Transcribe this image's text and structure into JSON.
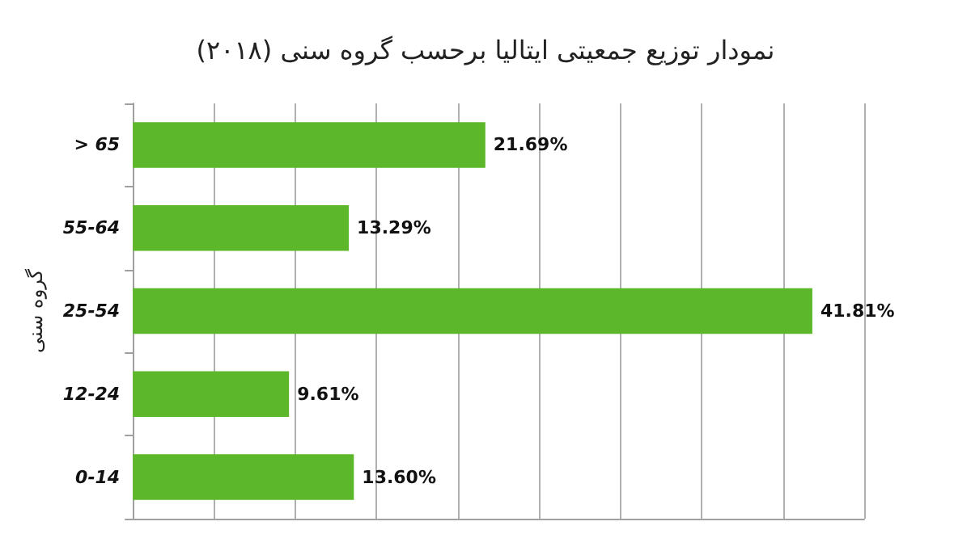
{
  "chart_data": {
    "type": "bar",
    "orientation": "horizontal",
    "title": "نمودار توزیع جمعیتی ایتالیا برحسب گروه سنی (۲۰۱۸)",
    "ylabel": "گروه سنی",
    "categories": [
      "> 65",
      "55-64",
      "25-54",
      "12-24",
      "0-14"
    ],
    "values": [
      21.69,
      13.29,
      41.81,
      9.61,
      13.6
    ],
    "value_labels": [
      "21.69%",
      "13.29%",
      "41.81%",
      "9.61%",
      "13.60%"
    ],
    "color": "#5cb82a",
    "xlim": [
      0,
      45
    ],
    "xticks": [
      {
        "value": 0,
        "label": null
      },
      {
        "value": 5,
        "label": null
      },
      {
        "value": 10,
        "label": null
      },
      {
        "value": 15,
        "label": null
      },
      {
        "value": 20,
        "label": null
      },
      {
        "value": 25,
        "label": null
      },
      {
        "value": 30,
        "label": null
      },
      {
        "value": 35,
        "label": null
      },
      {
        "value": 40,
        "label": null
      },
      {
        "value": 45,
        "label": null
      }
    ],
    "grid": "x",
    "tick_labels": "y"
  }
}
